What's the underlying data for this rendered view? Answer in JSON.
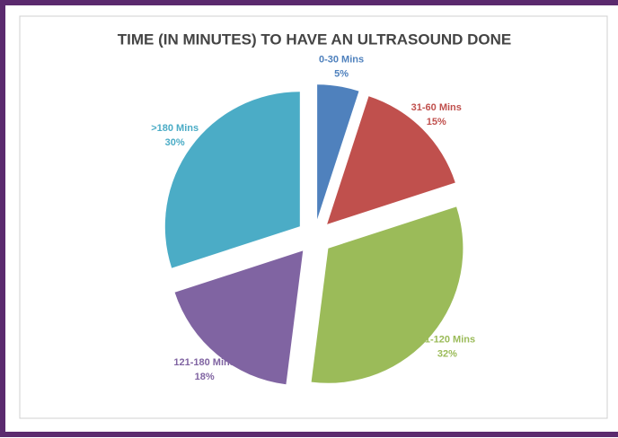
{
  "chart_data": {
    "type": "pie",
    "title": "TIME (IN MINUTES) TO HAVE AN ULTRASOUND DONE",
    "categories": [
      "0-30 Mins",
      "31-60 Mins",
      "61-120 Mins",
      "121-180 Mins",
      ">180 Mins"
    ],
    "values": [
      5,
      15,
      32,
      18,
      30
    ],
    "value_labels": [
      "5%",
      "15%",
      "32%",
      "18%",
      "30%"
    ],
    "colors": [
      "#4f81bd",
      "#c0504d",
      "#9bbb59",
      "#8064a2",
      "#4bacc6"
    ]
  }
}
